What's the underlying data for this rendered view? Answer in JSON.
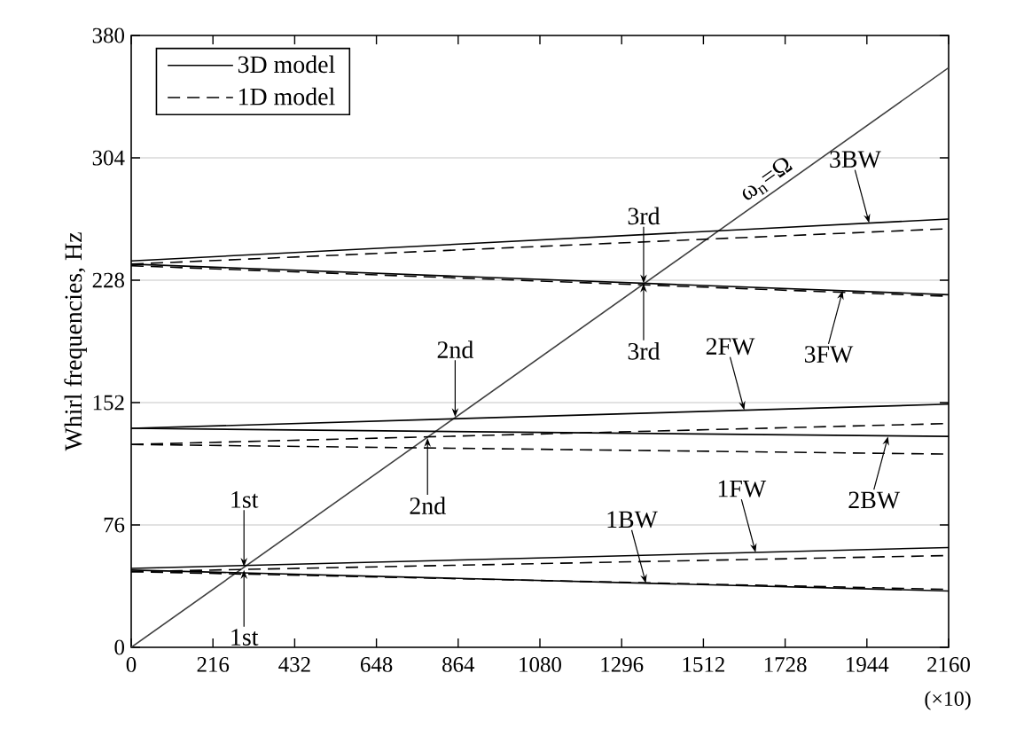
{
  "chart_data": {
    "type": "line",
    "ylabel": "Whirl frequencies, Hz",
    "xlim": [
      0,
      2160
    ],
    "xticks": [
      0,
      216,
      432,
      648,
      864,
      1080,
      1296,
      1512,
      1728,
      1944,
      2160
    ],
    "ylim": [
      0,
      380
    ],
    "yticks": [
      0,
      76,
      152,
      228,
      304,
      380
    ],
    "grid": "y",
    "legend": "top left",
    "x": [
      0,
      2160
    ],
    "series": [
      {
        "color": "#404040",
        "line_style": "solid",
        "values": [
          0,
          360
        ]
      },
      {
        "name": "3D model",
        "color": "#000000",
        "line_style": "solid",
        "values": [
          240,
          266
        ]
      },
      {
        "color": "#000000",
        "line_style": "solid",
        "values": [
          238,
          219
        ]
      },
      {
        "color": "#000000",
        "line_style": "solid",
        "values": [
          136,
          151
        ]
      },
      {
        "color": "#000000",
        "line_style": "solid",
        "values": [
          136,
          131
        ]
      },
      {
        "color": "#000000",
        "line_style": "solid",
        "values": [
          49,
          62
        ]
      },
      {
        "color": "#000000",
        "line_style": "solid",
        "values": [
          48,
          35
        ]
      },
      {
        "name": "1D model",
        "color": "#000000",
        "line_style": "dashed",
        "values": [
          238,
          260
        ]
      },
      {
        "color": "#000000",
        "line_style": "dashed",
        "values": [
          237,
          218
        ]
      },
      {
        "color": "#000000",
        "line_style": "dashed",
        "values": [
          126,
          139
        ]
      },
      {
        "color": "#000000",
        "line_style": "dashed",
        "values": [
          126,
          120
        ]
      },
      {
        "color": "#000000",
        "line_style": "dashed",
        "values": [
          47,
          57
        ]
      },
      {
        "color": "#000000",
        "line_style": "dashed",
        "values": [
          47,
          36
        ]
      }
    ],
    "annotations": [
      {
        "text": "1st",
        "x": 298,
        "y": 50
      },
      {
        "text": "1st",
        "x": 298,
        "y": 48
      },
      {
        "text": "2nd",
        "x": 856,
        "y": 143
      },
      {
        "text": "2nd",
        "x": 783,
        "y": 130
      },
      {
        "text": "3rd",
        "x": 1354,
        "y": 226
      },
      {
        "text": "3rd",
        "x": 1354,
        "y": 226
      },
      {
        "text": "ω$_{n}$=Ω",
        "x": 1700,
        "y": 283.3
      },
      {
        "text": "3BW",
        "x": 1950,
        "y": 263.5
      },
      {
        "text": "2FW",
        "x": 1620,
        "y": 147.3
      },
      {
        "text": "3FW",
        "x": 1880,
        "y": 221.5
      },
      {
        "text": "2BW",
        "x": 2000,
        "y": 131
      },
      {
        "text": "1FW",
        "x": 1650,
        "y": 58.9
      },
      {
        "text": "1BW",
        "x": 1360,
        "y": 39.8
      },
      "(×10)"
    ]
  }
}
